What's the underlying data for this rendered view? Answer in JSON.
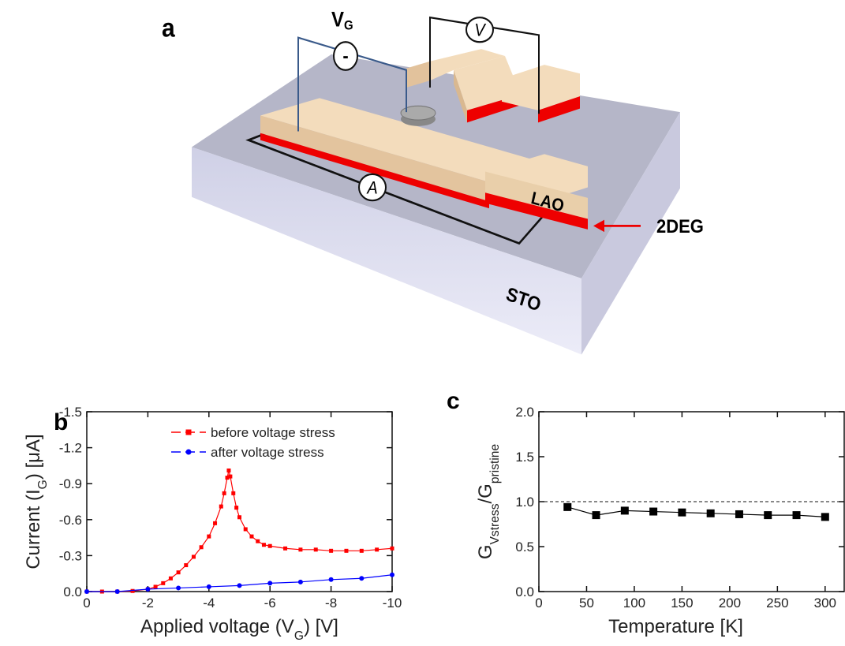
{
  "diagram": {
    "panel_label": "a",
    "gate_label": [
      "V",
      "G"
    ],
    "gate_meter": "-",
    "voltmeter": "V",
    "ammeter": "A",
    "lao": "LAO",
    "twodeg": "2DEG",
    "sto": "STO"
  },
  "chart_data": [
    {
      "type": "line",
      "panel_label": "b",
      "xlabel": [
        "Applied voltage (V",
        "G",
        ") [V]"
      ],
      "ylabel": [
        "Current (I",
        "G",
        ") [μA]"
      ],
      "xlim": [
        0,
        -10
      ],
      "ylim": [
        0,
        -1.5
      ],
      "xticks": [
        0,
        -2,
        -4,
        -6,
        -8,
        -10
      ],
      "yticks": [
        {
          "value": 0,
          "label": "0.0"
        },
        -0.3,
        -0.6,
        -0.9,
        -1.2,
        -1.5
      ],
      "legend": "upper right",
      "series": [
        {
          "name": "before voltage stress",
          "color": "#ff0000",
          "marker": "square",
          "x": [
            0,
            -0.5,
            -1,
            -1.5,
            -2,
            -2.25,
            -2.5,
            -2.75,
            -3,
            -3.25,
            -3.5,
            -3.75,
            -4,
            -4.2,
            -4.4,
            -4.5,
            -4.6,
            -4.65,
            -4.7,
            -4.8,
            -4.9,
            -5,
            -5.2,
            -5.4,
            -5.6,
            -5.8,
            -6,
            -6.5,
            -7,
            -7.5,
            -8,
            -8.5,
            -9,
            -9.5,
            -10
          ],
          "values": [
            0,
            0,
            0,
            -0.005,
            -0.02,
            -0.04,
            -0.07,
            -0.11,
            -0.16,
            -0.22,
            -0.29,
            -0.37,
            -0.46,
            -0.57,
            -0.71,
            -0.82,
            -0.95,
            -1.01,
            -0.96,
            -0.82,
            -0.7,
            -0.62,
            -0.52,
            -0.46,
            -0.42,
            -0.39,
            -0.38,
            -0.36,
            -0.35,
            -0.35,
            -0.34,
            -0.34,
            -0.34,
            -0.35,
            -0.36
          ]
        },
        {
          "name": "after voltage stress",
          "color": "#0000ff",
          "marker": "circle",
          "x": [
            0,
            -1,
            -2,
            -3,
            -4,
            -5,
            -6,
            -7,
            -8,
            -9,
            -10
          ],
          "values": [
            0,
            0,
            -0.02,
            -0.03,
            -0.04,
            -0.05,
            -0.07,
            -0.08,
            -0.1,
            -0.11,
            -0.14
          ]
        }
      ]
    },
    {
      "type": "line",
      "panel_label": "c",
      "xlabel": [
        "Temperature [K]"
      ],
      "ylabel": [
        "G",
        "Vstress",
        "/G",
        "pristine"
      ],
      "xlim": [
        0,
        320
      ],
      "ylim": [
        0,
        2
      ],
      "xticks": [
        0,
        50,
        100,
        150,
        200,
        250,
        300
      ],
      "yticks": [
        {
          "value": 0,
          "label": "0.0"
        },
        0.5,
        {
          "value": 1,
          "label": "1.0"
        },
        1.5,
        {
          "value": 2,
          "label": "2.0"
        }
      ],
      "reference_line": 1,
      "series": [
        {
          "color": "#000000",
          "marker": "square",
          "x": [
            30,
            60,
            90,
            120,
            150,
            180,
            210,
            240,
            270,
            300
          ],
          "values": [
            0.94,
            0.85,
            0.9,
            0.89,
            0.88,
            0.87,
            0.86,
            0.85,
            0.85,
            0.83
          ]
        }
      ]
    }
  ]
}
